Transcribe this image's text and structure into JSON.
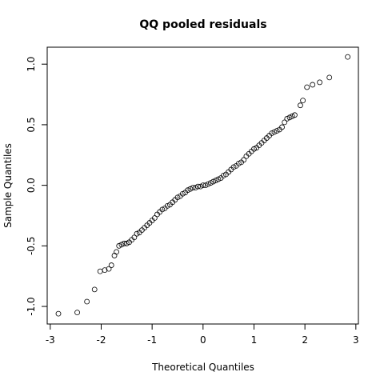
{
  "chart_data": {
    "type": "scatter",
    "title": "QQ pooled residuals",
    "xlabel": "Theoretical Quantiles",
    "ylabel": "Sample Quantiles",
    "xlim": [
      -3.06,
      3.05
    ],
    "ylim": [
      -1.145,
      1.14
    ],
    "xticks": [
      -3,
      -2,
      -1,
      0,
      1,
      2,
      3
    ],
    "yticks": [
      {
        "value": -1,
        "label": "-1.0"
      },
      {
        "value": -0.5,
        "label": "-0.5"
      },
      {
        "value": 0,
        "label": "0.0"
      },
      {
        "value": 0.5,
        "label": "0.5"
      },
      {
        "value": 1,
        "label": "1.0"
      }
    ],
    "color": "#000000",
    "x": [
      -2.84,
      -2.47,
      -2.28,
      -2.13,
      -2.02,
      -1.93,
      -1.85,
      -1.8,
      -1.74,
      -1.7,
      -1.65,
      -1.6,
      -1.55,
      -1.5,
      -1.45,
      -1.4,
      -1.35,
      -1.3,
      -1.25,
      -1.2,
      -1.15,
      -1.1,
      -1.05,
      -1.0,
      -0.95,
      -0.9,
      -0.85,
      -0.8,
      -0.75,
      -0.7,
      -0.65,
      -0.6,
      -0.55,
      -0.5,
      -0.45,
      -0.4,
      -0.35,
      -0.3,
      -0.25,
      -0.2,
      -0.15,
      -0.1,
      -0.05,
      0.0,
      0.05,
      0.1,
      0.15,
      0.2,
      0.25,
      0.3,
      0.35,
      0.4,
      0.45,
      0.5,
      0.55,
      0.6,
      0.65,
      0.7,
      0.75,
      0.8,
      0.85,
      0.9,
      0.95,
      1.0,
      1.05,
      1.1,
      1.15,
      1.2,
      1.25,
      1.3,
      1.35,
      1.4,
      1.45,
      1.5,
      1.55,
      1.6,
      1.65,
      1.7,
      1.75,
      1.8,
      1.91,
      1.96,
      2.04,
      2.15,
      2.29,
      2.48,
      2.84
    ],
    "y": [
      -1.06,
      -1.05,
      -0.96,
      -0.86,
      -0.71,
      -0.7,
      -0.69,
      -0.66,
      -0.58,
      -0.55,
      -0.5,
      -0.49,
      -0.48,
      -0.48,
      -0.47,
      -0.45,
      -0.43,
      -0.4,
      -0.39,
      -0.37,
      -0.35,
      -0.33,
      -0.31,
      -0.29,
      -0.27,
      -0.24,
      -0.22,
      -0.2,
      -0.19,
      -0.17,
      -0.16,
      -0.14,
      -0.12,
      -0.1,
      -0.09,
      -0.07,
      -0.06,
      -0.04,
      -0.03,
      -0.02,
      -0.02,
      -0.01,
      -0.01,
      0.0,
      0.0,
      0.01,
      0.02,
      0.03,
      0.04,
      0.05,
      0.06,
      0.08,
      0.09,
      0.11,
      0.13,
      0.15,
      0.16,
      0.18,
      0.19,
      0.21,
      0.24,
      0.26,
      0.28,
      0.3,
      0.31,
      0.33,
      0.35,
      0.37,
      0.39,
      0.41,
      0.43,
      0.44,
      0.45,
      0.46,
      0.48,
      0.52,
      0.55,
      0.56,
      0.57,
      0.58,
      0.66,
      0.7,
      0.81,
      0.83,
      0.85,
      0.89,
      1.06
    ]
  }
}
